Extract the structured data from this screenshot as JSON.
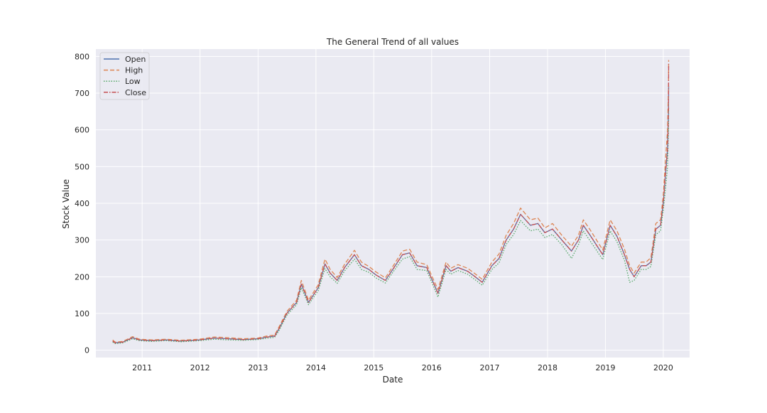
{
  "chart_data": {
    "type": "line",
    "title": "The General Trend of all values",
    "xlabel": "Date",
    "ylabel": "Stock Value",
    "xlim": [
      "2010-03-15",
      "2020-06-15"
    ],
    "ylim": [
      -20,
      820
    ],
    "x_ticks": [
      "2011",
      "2012",
      "2013",
      "2014",
      "2015",
      "2016",
      "2017",
      "2018",
      "2019",
      "2020"
    ],
    "y_ticks": [
      0,
      100,
      200,
      300,
      400,
      500,
      600,
      700,
      800
    ],
    "grid": true,
    "legend_position": "top-left",
    "x": [
      "2010-06-29",
      "2010-07-15",
      "2010-09-01",
      "2010-11-01",
      "2010-12-15",
      "2011-03-01",
      "2011-06-01",
      "2011-09-01",
      "2011-12-30",
      "2012-03-30",
      "2012-06-30",
      "2012-09-30",
      "2012-12-30",
      "2013-03-01",
      "2013-04-15",
      "2013-05-15",
      "2013-07-01",
      "2013-09-01",
      "2013-10-01",
      "2013-11-15",
      "2014-01-15",
      "2014-02-27",
      "2014-04-01",
      "2014-05-15",
      "2014-07-01",
      "2014-09-01",
      "2014-10-15",
      "2014-12-01",
      "2015-01-15",
      "2015-03-15",
      "2015-05-01",
      "2015-07-01",
      "2015-08-15",
      "2015-10-01",
      "2015-12-01",
      "2016-02-10",
      "2016-04-01",
      "2016-05-01",
      "2016-06-15",
      "2016-08-15",
      "2016-10-01",
      "2016-11-15",
      "2017-01-15",
      "2017-03-01",
      "2017-04-15",
      "2017-06-01",
      "2017-07-15",
      "2017-09-15",
      "2017-11-01",
      "2017-12-15",
      "2018-02-01",
      "2018-04-01",
      "2018-06-01",
      "2018-07-15",
      "2018-08-15",
      "2018-10-01",
      "2018-12-15",
      "2019-01-31",
      "2019-03-15",
      "2019-05-01",
      "2019-06-03",
      "2019-07-01",
      "2019-08-15",
      "2019-09-15",
      "2019-10-15",
      "2019-11-15",
      "2019-12-15",
      "2020-01-01",
      "2020-01-15",
      "2020-01-28",
      "2020-02-03",
      "2020-02-04"
    ],
    "series": [
      {
        "name": "Open",
        "values": [
          25,
          20,
          22,
          34,
          28,
          26,
          28,
          25,
          28,
          33,
          31,
          29,
          31,
          36,
          38,
          60,
          100,
          130,
          180,
          130,
          170,
          235,
          210,
          190,
          225,
          260,
          230,
          220,
          205,
          190,
          220,
          260,
          265,
          230,
          225,
          155,
          230,
          215,
          225,
          215,
          200,
          185,
          230,
          250,
          300,
          330,
          370,
          340,
          345,
          320,
          330,
          300,
          270,
          300,
          340,
          310,
          260,
          340,
          310,
          260,
          220,
          200,
          230,
          230,
          240,
          330,
          340,
          400,
          480,
          550,
          650,
          720
        ]
      },
      {
        "name": "High",
        "values": [
          28,
          22,
          24,
          37,
          30,
          28,
          30,
          27,
          30,
          36,
          34,
          31,
          33,
          39,
          41,
          65,
          105,
          136,
          190,
          136,
          178,
          248,
          220,
          198,
          234,
          272,
          240,
          228,
          213,
          197,
          228,
          270,
          275,
          240,
          233,
          165,
          240,
          223,
          233,
          223,
          208,
          193,
          240,
          262,
          313,
          345,
          387,
          355,
          360,
          333,
          345,
          313,
          283,
          313,
          355,
          325,
          273,
          355,
          325,
          275,
          230,
          210,
          240,
          240,
          252,
          345,
          355,
          420,
          520,
          600,
          720,
          790
        ]
      },
      {
        "name": "Low",
        "values": [
          22,
          18,
          20,
          31,
          26,
          24,
          26,
          23,
          26,
          30,
          28,
          27,
          29,
          33,
          35,
          55,
          95,
          124,
          170,
          124,
          162,
          222,
          200,
          182,
          216,
          248,
          220,
          212,
          197,
          183,
          212,
          248,
          255,
          220,
          217,
          145,
          220,
          207,
          217,
          207,
          192,
          177,
          220,
          238,
          288,
          315,
          353,
          325,
          330,
          307,
          315,
          287,
          250,
          287,
          325,
          295,
          247,
          325,
          295,
          245,
          185,
          190,
          220,
          220,
          228,
          315,
          325,
          380,
          440,
          500,
          600,
          660
        ]
      },
      {
        "name": "Close",
        "values": [
          25,
          20,
          22,
          34,
          28,
          26,
          28,
          25,
          28,
          33,
          31,
          29,
          31,
          36,
          38,
          60,
          100,
          130,
          180,
          130,
          170,
          235,
          210,
          190,
          225,
          260,
          230,
          220,
          205,
          190,
          220,
          260,
          265,
          230,
          225,
          155,
          230,
          215,
          225,
          215,
          200,
          185,
          230,
          250,
          300,
          330,
          370,
          340,
          345,
          320,
          330,
          300,
          270,
          300,
          340,
          310,
          260,
          340,
          310,
          260,
          220,
          200,
          230,
          230,
          240,
          330,
          340,
          400,
          480,
          550,
          650,
          780
        ]
      }
    ],
    "colors": {
      "Open": "#4c72b0",
      "High": "#dd8452",
      "Low": "#55a868",
      "Close": "#c44e52",
      "plot_background": "#eaeaf2",
      "grid": "#ffffff"
    },
    "line_styles": {
      "Open": "solid",
      "High": "dashed",
      "Low": "dotted",
      "Close": "dashdot"
    }
  }
}
